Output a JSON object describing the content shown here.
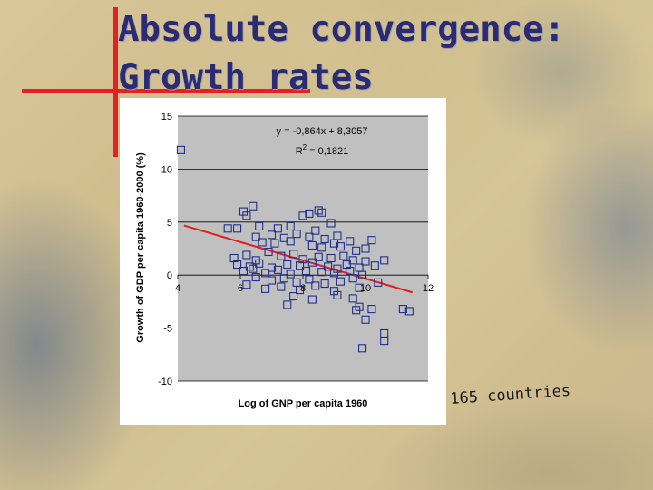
{
  "slide": {
    "title_line1": "Absolute convergence:",
    "title_line2": "Growth rates",
    "note": "165 countries"
  },
  "colors": {
    "title": "#2b2b72",
    "accent_lines": "#e02222",
    "plot_area": "#c0c0c0",
    "marker": "#1f2f8f",
    "trend": "#e02020"
  },
  "chart_data": {
    "type": "scatter",
    "xlabel": "Log of GNP per capita 1960",
    "ylabel": "Growth of GDP per capita 1960-2000 (%)",
    "xlim": [
      4,
      12
    ],
    "ylim": [
      -10,
      15
    ],
    "x_ticks": [
      4,
      6,
      8,
      10,
      12
    ],
    "y_ticks": [
      -10,
      -5,
      0,
      5,
      10,
      15
    ],
    "grid": {
      "horizontal": true,
      "vertical": false
    },
    "equation": "y = -0,864x + 8,3057",
    "r_squared_label": "R",
    "r_squared_exp": "2",
    "r_squared_value": " = 0,1821",
    "trendline": {
      "slope": -0.864,
      "intercept": 8.3057,
      "x_start": 4.2,
      "x_end": 11.5
    },
    "points": [
      [
        4.1,
        11.8
      ],
      [
        6.1,
        6.0
      ],
      [
        6.4,
        6.5
      ],
      [
        6.2,
        5.6
      ],
      [
        8.2,
        5.8
      ],
      [
        8.5,
        6.1
      ],
      [
        8.6,
        5.9
      ],
      [
        8.0,
        5.6
      ],
      [
        5.6,
        4.4
      ],
      [
        5.9,
        4.4
      ],
      [
        6.6,
        4.6
      ],
      [
        7.6,
        4.6
      ],
      [
        8.9,
        4.9
      ],
      [
        7.2,
        4.4
      ],
      [
        8.4,
        4.2
      ],
      [
        6.5,
        3.6
      ],
      [
        7.0,
        3.8
      ],
      [
        7.4,
        3.5
      ],
      [
        7.8,
        3.9
      ],
      [
        8.2,
        3.6
      ],
      [
        8.7,
        3.4
      ],
      [
        9.1,
        3.7
      ],
      [
        9.5,
        3.2
      ],
      [
        10.2,
        3.3
      ],
      [
        9.0,
        3.0
      ],
      [
        6.7,
        3.1
      ],
      [
        7.1,
        3.0
      ],
      [
        7.6,
        3.2
      ],
      [
        8.3,
        2.8
      ],
      [
        8.6,
        2.6
      ],
      [
        9.2,
        2.7
      ],
      [
        9.7,
        2.3
      ],
      [
        10.0,
        2.5
      ],
      [
        5.8,
        1.6
      ],
      [
        6.2,
        1.9
      ],
      [
        6.5,
        1.4
      ],
      [
        6.9,
        2.2
      ],
      [
        7.3,
        1.8
      ],
      [
        7.7,
        2.0
      ],
      [
        8.0,
        1.5
      ],
      [
        8.5,
        1.7
      ],
      [
        8.9,
        1.6
      ],
      [
        9.3,
        1.8
      ],
      [
        9.6,
        1.4
      ],
      [
        10.0,
        1.3
      ],
      [
        10.6,
        1.4
      ],
      [
        5.9,
        1.0
      ],
      [
        6.3,
        0.8
      ],
      [
        6.6,
        1.1
      ],
      [
        7.0,
        0.7
      ],
      [
        7.5,
        1.0
      ],
      [
        7.9,
        0.9
      ],
      [
        8.3,
        1.2
      ],
      [
        8.8,
        0.8
      ],
      [
        9.1,
        0.6
      ],
      [
        9.4,
        1.0
      ],
      [
        9.8,
        0.7
      ],
      [
        10.3,
        0.9
      ],
      [
        6.1,
        0.4
      ],
      [
        6.4,
        0.6
      ],
      [
        6.8,
        0.2
      ],
      [
        7.2,
        0.5
      ],
      [
        7.6,
        0.1
      ],
      [
        8.1,
        0.4
      ],
      [
        8.6,
        0.3
      ],
      [
        9.0,
        0.2
      ],
      [
        9.5,
        0.4
      ],
      [
        9.9,
        0.0
      ],
      [
        6.5,
        -0.2
      ],
      [
        7.0,
        -0.5
      ],
      [
        7.4,
        -0.3
      ],
      [
        7.8,
        -0.7
      ],
      [
        8.2,
        -0.4
      ],
      [
        8.7,
        -0.8
      ],
      [
        9.2,
        -0.6
      ],
      [
        9.6,
        -0.3
      ],
      [
        6.2,
        -0.9
      ],
      [
        6.8,
        -1.3
      ],
      [
        7.3,
        -1.1
      ],
      [
        7.9,
        -1.4
      ],
      [
        8.4,
        -1.0
      ],
      [
        9.0,
        -1.5
      ],
      [
        9.8,
        -1.2
      ],
      [
        10.4,
        -0.7
      ],
      [
        7.7,
        -2.0
      ],
      [
        8.3,
        -2.3
      ],
      [
        9.1,
        -1.9
      ],
      [
        9.6,
        -2.2
      ],
      [
        7.5,
        -2.8
      ],
      [
        9.8,
        -3.0
      ],
      [
        9.7,
        -3.3
      ],
      [
        10.2,
        -3.2
      ],
      [
        10.0,
        -4.2
      ],
      [
        11.2,
        -3.2
      ],
      [
        11.4,
        -3.4
      ],
      [
        10.6,
        -5.5
      ],
      [
        10.6,
        -6.2
      ],
      [
        9.9,
        -6.9
      ]
    ]
  }
}
